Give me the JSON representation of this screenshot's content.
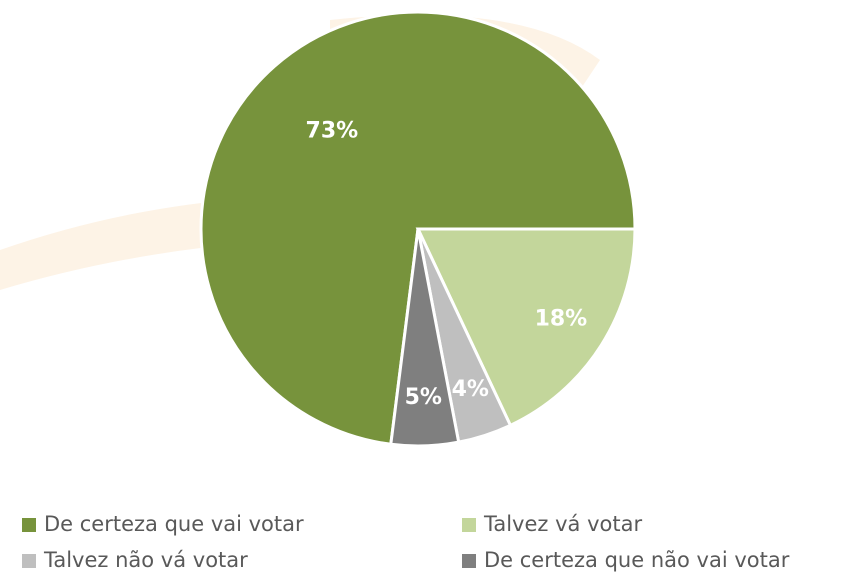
{
  "chart_data": {
    "type": "pie",
    "categories": [
      "De certeza que vai votar",
      "Talvez vá votar",
      "Talvez não vá votar",
      "De certeza que não vai votar"
    ],
    "values": [
      73,
      18,
      4,
      5
    ],
    "value_labels": [
      "73%",
      "18%",
      "4%",
      "5%"
    ],
    "colors": [
      "#77933c",
      "#c3d69b",
      "#bfbfbf",
      "#7f7f7f"
    ],
    "legend": "bottom"
  }
}
